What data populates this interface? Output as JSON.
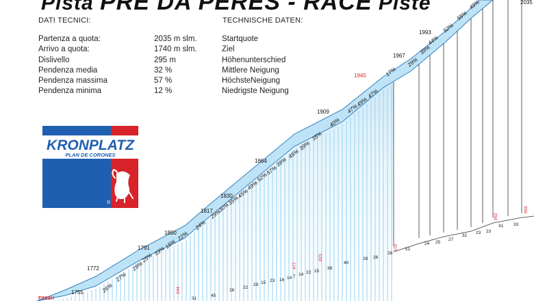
{
  "title": {
    "prefix": "Pista",
    "name": "PRE DA PERES - RACE",
    "suffix": "Piste"
  },
  "left_heading": "DATI TECNICI:",
  "right_heading": "TECHNISCHE DATEN:",
  "technical_data": [
    {
      "it": "Partenza a quota:",
      "value": "2035 m slm.",
      "de": "Startquote"
    },
    {
      "it": "Arrivo a quota:",
      "value": "1740 m slm.",
      "de": "Ziel"
    },
    {
      "it": "Dislivello",
      "value": "295 m",
      "de": "Höhenunterschied"
    },
    {
      "it": "Pendenza media",
      "value": "32 %",
      "de": "Mittlere Neigung"
    },
    {
      "it": "Pendenza massima",
      "value": "57 %",
      "de": "HöchsteNeigung"
    },
    {
      "it": "Pendenza minima",
      "value": "12 %",
      "de": "Niedrigste Neigung"
    }
  ],
  "logo": {
    "brand": "KRONPLATZ",
    "sub": "PLAN DE CORONES",
    "reg": "®",
    "blue": "#1f5fb0",
    "red": "#d8232a"
  },
  "profile": {
    "finish_label": "FINISH",
    "colors": {
      "snow_light": "#cfe9f7",
      "snow_mid": "#6cc3ec",
      "stripe": "#9fd6f2",
      "slope_line": "#2f7fc0",
      "red_label": "#d8232a"
    },
    "altitudes": [
      "1755",
      "1772",
      "1791",
      "1800",
      "1817",
      "1830",
      "1864",
      "1909",
      "1945",
      "1967",
      "1993",
      "2035"
    ],
    "slope_labels": [
      "26%",
      "27%",
      "29%",
      "25%",
      "33%",
      "15%",
      "22%",
      "24%",
      "29%",
      "30%",
      "35%",
      "45%",
      "49%",
      "52%",
      "57%",
      "39%",
      "45%",
      "39%",
      "35%",
      "40%",
      "47%",
      "49%",
      "47%",
      "17%",
      "29%",
      "39%",
      "44%",
      "52%",
      "55%",
      "49%"
    ],
    "distance_labels": [
      "31",
      "45",
      "28",
      "22",
      "29",
      "15",
      "23",
      "16",
      "14",
      "7",
      "14",
      "22",
      "15",
      "38",
      "40",
      "28",
      "26",
      "26",
      "51",
      "24",
      "25",
      "27",
      "32",
      "23",
      "23",
      "31",
      "33"
    ],
    "red_distances": [
      "244",
      "477",
      "823",
      "670",
      "962",
      "956"
    ]
  }
}
